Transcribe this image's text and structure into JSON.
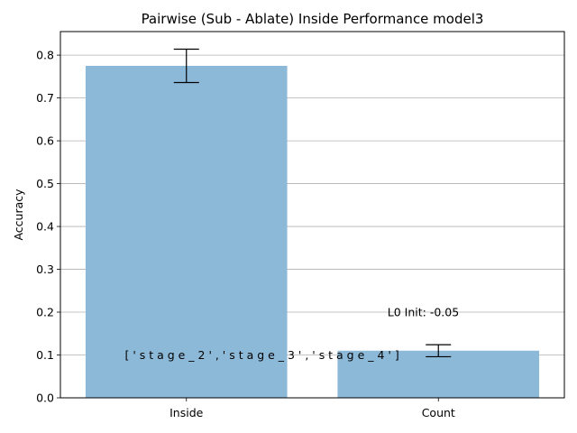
{
  "chart_data": {
    "type": "bar",
    "title": "Pairwise (Sub - Ablate) Inside Performance model3",
    "xlabel": "",
    "ylabel": "Accuracy",
    "categories": [
      "Inside",
      "Count"
    ],
    "values": [
      0.775,
      0.11
    ],
    "error": [
      0.039,
      0.014
    ],
    "ylim": [
      0,
      0.855
    ],
    "yticks": [
      0.0,
      0.1,
      0.2,
      0.3,
      0.4,
      0.5,
      0.6,
      0.7,
      0.8
    ],
    "ytick_labels": [
      "0.0",
      "0.1",
      "0.2",
      "0.3",
      "0.4",
      "0.5",
      "0.6",
      "0.7",
      "0.8"
    ],
    "grid": "y",
    "bar_color": "#8db9d9",
    "annotations": [
      {
        "text": "L0 Init: -0.05",
        "x": 0.72,
        "y": 0.2
      },
      {
        "text": "[ ' s t a g e _ 2 ' ,   ' s t a g e _ 3 ' ,   ' s t a g e _ 4 ' ]",
        "x": 0.4,
        "y": 0.1
      }
    ]
  }
}
